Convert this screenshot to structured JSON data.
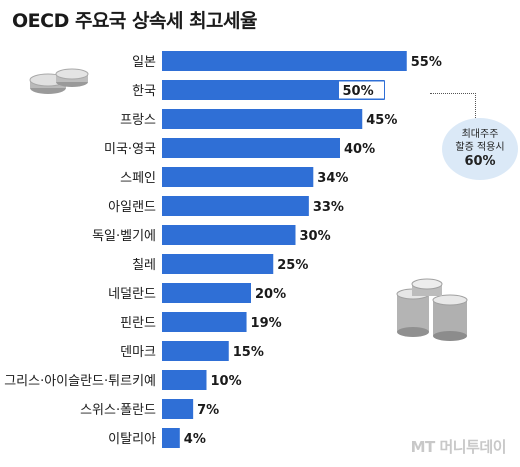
{
  "title": "OECD 주요국 상속세 최고세율",
  "chart_data": {
    "type": "bar",
    "orientation": "horizontal",
    "categories": [
      "일본",
      "한국",
      "프랑스",
      "미국·영국",
      "스페인",
      "아일랜드",
      "독일·벨기에",
      "칠레",
      "네덜란드",
      "핀란드",
      "덴마크",
      "그리스·아이슬란드·튀르키예",
      "스위스·폴란드",
      "이탈리아"
    ],
    "values": [
      55,
      50,
      45,
      40,
      34,
      33,
      30,
      25,
      20,
      19,
      15,
      10,
      7,
      4
    ],
    "value_labels": [
      "55%",
      "50%",
      "45%",
      "40%",
      "34%",
      "33%",
      "30%",
      "25%",
      "20%",
      "19%",
      "15%",
      "10%",
      "7%",
      "4%"
    ],
    "highlight_index": 1,
    "bar_color": "#2f6fd6",
    "highlight_fill": "#ffffff",
    "xlim": [
      0,
      60
    ],
    "annotation": {
      "line1": "최대주주",
      "line2": "할증 적용시",
      "line3": "60%",
      "color": "#dbe9f7"
    }
  },
  "watermark": "MT 머니투데이"
}
